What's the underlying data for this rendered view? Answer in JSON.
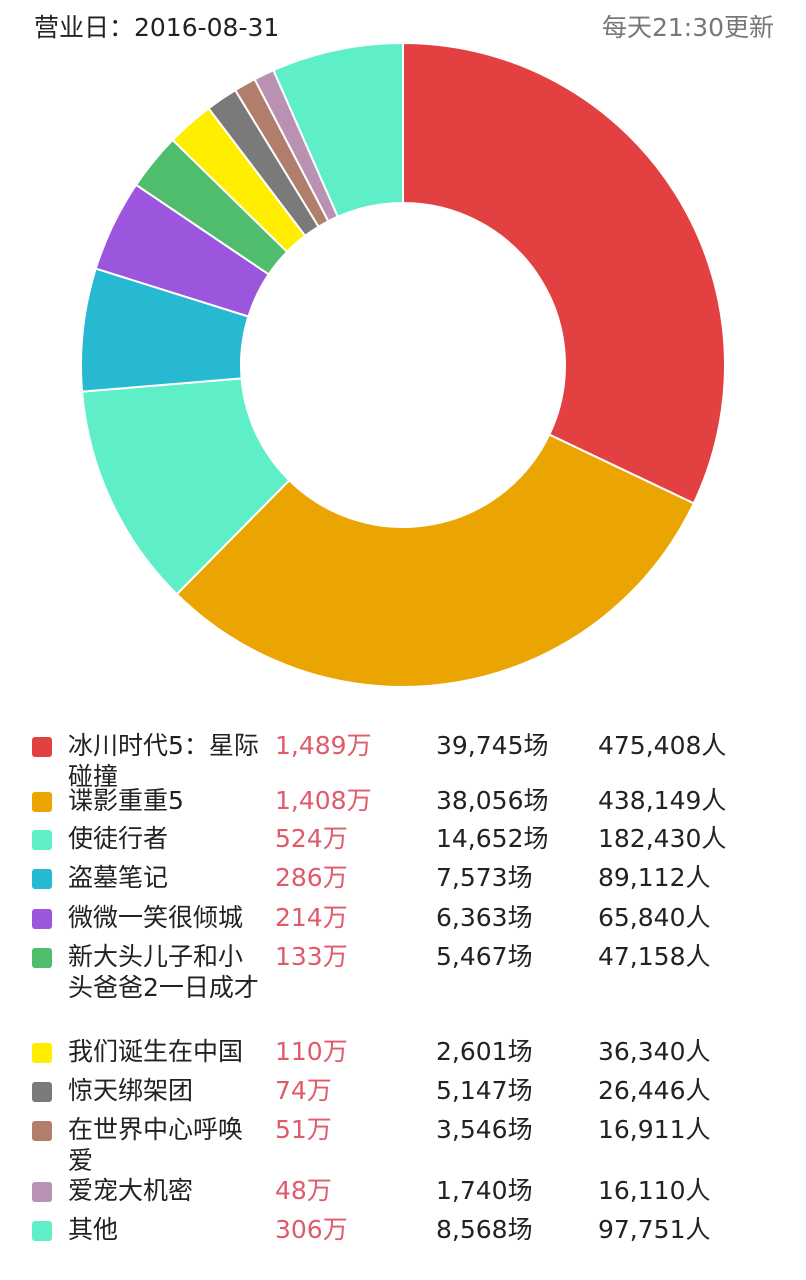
{
  "header": {
    "date_label": "营业日：2016-08-31",
    "update_label": "每天21:30更新"
  },
  "chart_data": {
    "type": "pie",
    "style": "donut",
    "start": "top",
    "direction": "clockwise",
    "legend": "bottom",
    "categories": [
      "冰川时代5：星际碰撞",
      "谍影重重5",
      "使徒行者",
      "盗墓笔记",
      "微微一笑很倾城",
      "新大头儿子和小头爸爸2一日成才",
      "我们诞生在中国",
      "惊天绑架团",
      "在世界中心呼唤爱",
      "爱宠大机密",
      "其他"
    ],
    "values": [
      1489,
      1408,
      524,
      286,
      214,
      133,
      110,
      74,
      51,
      48,
      306
    ],
    "colors": [
      "#e34141",
      "#eaa502",
      "#5eeec8",
      "#27b8d2",
      "#9b56dd",
      "#4fbd6b",
      "#ffee00",
      "#7a7a7a",
      "#b17e6b",
      "#b992b3",
      "#5eeec8"
    ]
  },
  "legend": {
    "rows": [
      {
        "name": "冰川时代5：星际碰撞",
        "box": "1,489万",
        "shows": "39,745场",
        "people": "475,408人"
      },
      {
        "name": "谍影重重5",
        "box": "1,408万",
        "shows": "38,056场",
        "people": "438,149人"
      },
      {
        "name": "使徒行者",
        "box": "524万",
        "shows": "14,652场",
        "people": "182,430人"
      },
      {
        "name": "盗墓笔记",
        "box": "286万",
        "shows": "7,573场",
        "people": "89,112人"
      },
      {
        "name": "微微一笑很倾城",
        "box": "214万",
        "shows": "6,363场",
        "people": "65,840人"
      },
      {
        "name": "新大头儿子和小头爸爸2一日成才",
        "box": "133万",
        "shows": "5,467场",
        "people": "47,158人"
      },
      {
        "name": "我们诞生在中国",
        "box": "110万",
        "shows": "2,601场",
        "people": "36,340人"
      },
      {
        "name": "惊天绑架团",
        "box": "74万",
        "shows": "5,147场",
        "people": "26,446人"
      },
      {
        "name": "在世界中心呼唤爱",
        "box": "51万",
        "shows": "3,546场",
        "people": "16,911人"
      },
      {
        "name": "爱宠大机密",
        "box": "48万",
        "shows": "1,740场",
        "people": "16,110人"
      },
      {
        "name": "其他",
        "box": "306万",
        "shows": "8,568场",
        "people": "97,751人"
      }
    ]
  }
}
